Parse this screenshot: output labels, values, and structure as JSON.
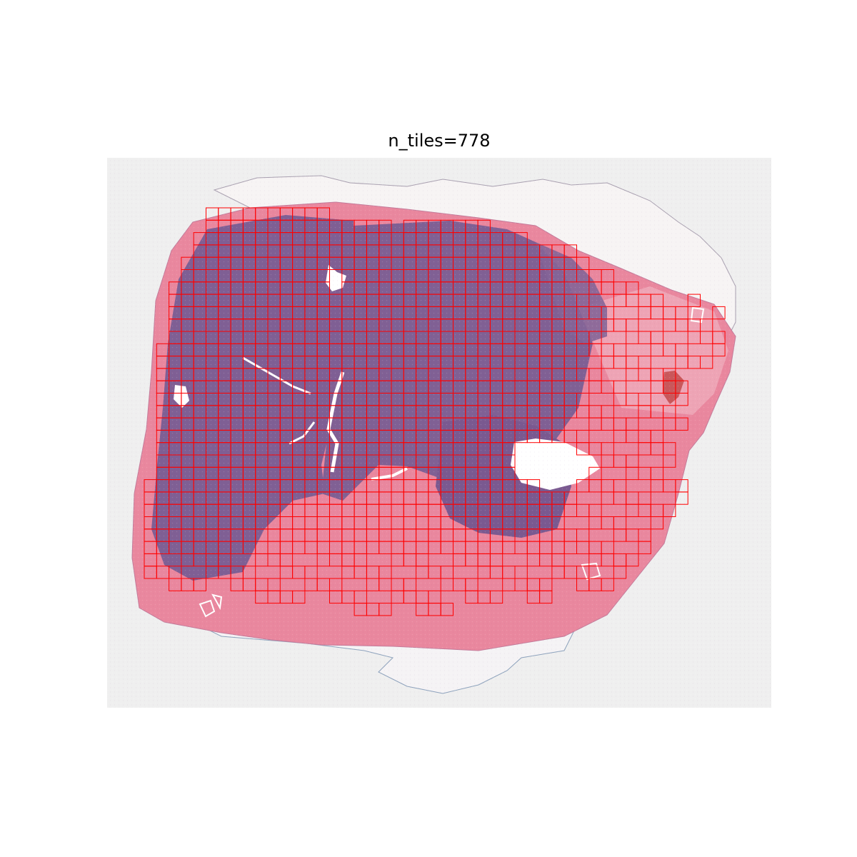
{
  "figure": {
    "title": "n_tiles=778"
  },
  "slide": {
    "background_color": "#efefef",
    "stroma_color": "#e9879e",
    "tumor_color": "#7f5f94",
    "tile_outline_color": "#ff0000"
  }
}
